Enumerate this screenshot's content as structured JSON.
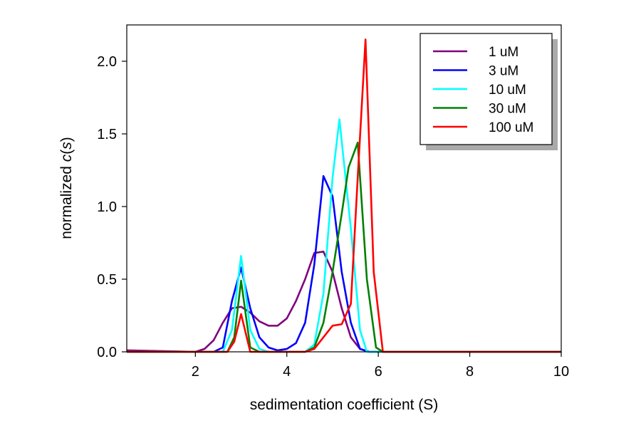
{
  "chart_data": {
    "type": "line",
    "title": "",
    "xlabel": "sedimentation coefficient (S)",
    "ylabel_prefix": "normalized ",
    "ylabel_italic": "c",
    "ylabel_open": "(",
    "ylabel_var": "s",
    "ylabel_close": ")",
    "xlim": [
      0.5,
      10
    ],
    "ylim": [
      0,
      2.25
    ],
    "xticks": [
      2,
      4,
      6,
      8,
      10
    ],
    "xtick_labels": [
      "2",
      "4",
      "6",
      "8",
      "10"
    ],
    "yticks": [
      0,
      0.5,
      1.0,
      1.5,
      2.0
    ],
    "ytick_labels": [
      "0.0",
      "0.5",
      "1.0",
      "1.5",
      "2.0"
    ],
    "grid": false,
    "legend_placement": "top-right",
    "series": [
      {
        "name": "1 uM",
        "color": "#800080",
        "x": [
          0.5,
          2.0,
          2.2,
          2.4,
          2.6,
          2.8,
          3.0,
          3.2,
          3.4,
          3.6,
          3.8,
          4.0,
          4.2,
          4.4,
          4.6,
          4.8,
          5.0,
          5.2,
          5.4,
          5.6,
          5.8,
          10
        ],
        "y": [
          0.01,
          0,
          0.02,
          0.08,
          0.2,
          0.3,
          0.31,
          0.27,
          0.21,
          0.18,
          0.18,
          0.23,
          0.35,
          0.5,
          0.68,
          0.69,
          0.55,
          0.3,
          0.1,
          0.02,
          0,
          0
        ]
      },
      {
        "name": "3 uM",
        "color": "#0000ff",
        "x": [
          0.5,
          2.4,
          2.6,
          2.8,
          3.0,
          3.2,
          3.4,
          3.6,
          3.8,
          4.0,
          4.2,
          4.4,
          4.6,
          4.8,
          5.0,
          5.2,
          5.4,
          5.6,
          5.8,
          10
        ],
        "y": [
          0,
          0,
          0.03,
          0.35,
          0.58,
          0.3,
          0.1,
          0.03,
          0.01,
          0.02,
          0.06,
          0.2,
          0.6,
          1.21,
          1.07,
          0.55,
          0.2,
          0.02,
          0,
          0
        ]
      },
      {
        "name": "10 uM",
        "color": "#00ffff",
        "x": [
          0.5,
          2.6,
          2.8,
          3.0,
          3.2,
          3.4,
          3.6,
          4.4,
          4.6,
          4.8,
          5.0,
          5.15,
          5.4,
          5.6,
          5.75,
          10
        ],
        "y": [
          0,
          0,
          0.15,
          0.66,
          0.15,
          0.02,
          0,
          0,
          0.05,
          0.4,
          1.2,
          1.6,
          0.85,
          0.15,
          0,
          0
        ]
      },
      {
        "name": "30 uM",
        "color": "#008000",
        "x": [
          0.5,
          2.7,
          2.85,
          3.0,
          3.2,
          3.4,
          4.4,
          4.6,
          4.8,
          5.0,
          5.2,
          5.35,
          5.55,
          5.75,
          5.95,
          6.1,
          10
        ],
        "y": [
          0,
          0,
          0.1,
          0.49,
          0.03,
          0,
          0,
          0.03,
          0.2,
          0.55,
          0.95,
          1.27,
          1.44,
          0.5,
          0.03,
          0,
          0
        ]
      },
      {
        "name": "100 uM",
        "color": "#ff0000",
        "x": [
          0.5,
          2.7,
          2.85,
          3.0,
          3.2,
          4.4,
          4.6,
          4.8,
          5.0,
          5.2,
          5.4,
          5.55,
          5.72,
          5.9,
          6.1,
          10
        ],
        "y": [
          0,
          0,
          0.07,
          0.26,
          0,
          0,
          0.02,
          0.1,
          0.18,
          0.19,
          0.33,
          1.2,
          2.15,
          0.55,
          0,
          0
        ]
      }
    ]
  }
}
